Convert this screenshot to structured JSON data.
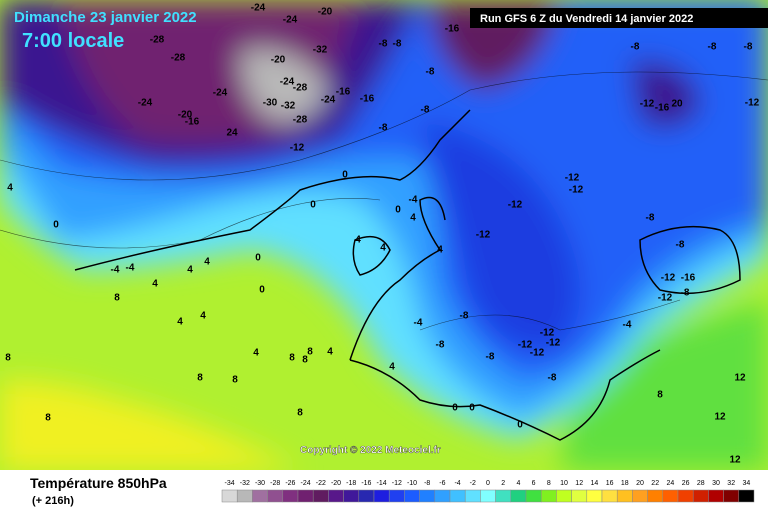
{
  "header": {
    "date": "Dimanche 23 janvier 2022",
    "time": "7:00 locale",
    "run": "Run GFS 6 Z du Vendredi 14 janvier 2022",
    "copyright": "Copyright © 2022 Meteociel.fr"
  },
  "footer": {
    "title": "Température 850hPa",
    "lead": "(+ 216h)"
  },
  "colorbar": {
    "values": [
      -34,
      -32,
      -30,
      -28,
      -26,
      -24,
      -22,
      -20,
      -18,
      -16,
      -14,
      -12,
      -10,
      -8,
      -6,
      -4,
      -2,
      0,
      2,
      4,
      6,
      8,
      10,
      12,
      14,
      16,
      18,
      20,
      22,
      24,
      26,
      28,
      30,
      32,
      34
    ],
    "colors": [
      "#d8d8d8",
      "#b8b8b8",
      "#a070a0",
      "#905090",
      "#803080",
      "#702070",
      "#601c60",
      "#58188a",
      "#40189a",
      "#2828b0",
      "#1e1ee0",
      "#2040f0",
      "#1c5cff",
      "#2080ff",
      "#30a0ff",
      "#40c0ff",
      "#60e0ff",
      "#80ffff",
      "#40e0c0",
      "#20d080",
      "#40e040",
      "#80f020",
      "#c0ff20",
      "#e0ff40",
      "#ffff40",
      "#ffe040",
      "#ffc020",
      "#ffa020",
      "#ff8000",
      "#ff6000",
      "#f04000",
      "#d02000",
      "#b00000",
      "#800000",
      "#000000"
    ]
  },
  "map": {
    "labels": [
      "-24",
      "-24",
      "-20",
      "-28",
      "-28",
      "-20",
      "-32",
      "-24",
      "-28",
      "-24",
      "-24",
      "-20",
      "-16",
      "24",
      "-30",
      "-32",
      "-28",
      "-24",
      "-16",
      "-16",
      "-12",
      "-8",
      "-8",
      "-16",
      "-8",
      "-8",
      "-8",
      "-8",
      "-8",
      "-8",
      "-8",
      "-12",
      "-16",
      "20",
      "-12",
      "-12",
      "-12",
      "-12",
      "-12",
      "0",
      "0",
      "4",
      "0",
      "-4",
      "-4",
      "4",
      "4",
      "4",
      "4",
      "4",
      "-4",
      "4",
      "0",
      "4",
      "0",
      "0",
      "4",
      "4",
      "4",
      "8",
      "8",
      "8",
      "4",
      "4",
      "8",
      "8",
      "8",
      "8",
      "8",
      "8",
      "-4",
      "-8",
      "-8",
      "-8",
      "-12",
      "-12",
      "-12",
      "-12",
      "-8",
      "-8",
      "-8",
      "-12",
      "-16",
      "-12",
      "-8",
      "-4",
      "0",
      "0",
      "0",
      "12",
      "12",
      "12",
      "8"
    ]
  }
}
